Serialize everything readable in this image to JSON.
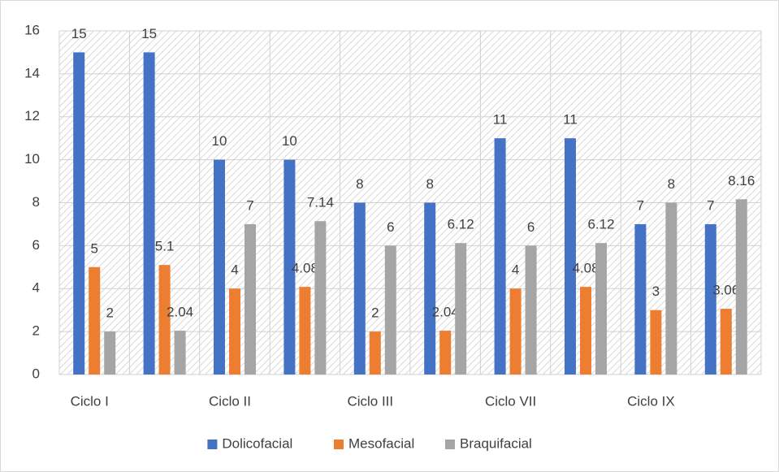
{
  "chart_data": {
    "type": "bar",
    "categories": [
      "Ciclo I",
      null,
      "Ciclo II",
      null,
      "Ciclo III",
      null,
      "Ciclo VII",
      null,
      "Ciclo IX",
      null
    ],
    "series": [
      {
        "name": "Dolicofacial",
        "color": "#4472c4",
        "values": [
          15,
          15,
          10,
          10,
          8,
          8,
          11,
          11,
          7,
          7
        ]
      },
      {
        "name": "Mesofacial",
        "color": "#ed7d31",
        "values": [
          5,
          5.1,
          4,
          4.08,
          2,
          2.04,
          4,
          4.08,
          3,
          3.06
        ]
      },
      {
        "name": "Braquifacial",
        "color": "#a5a5a5",
        "values": [
          2,
          2.04,
          7,
          7.14,
          6,
          6.12,
          6,
          6.12,
          8,
          8.16
        ]
      }
    ],
    "ylim": [
      0,
      16
    ],
    "yticks": [
      0,
      2,
      4,
      6,
      8,
      10,
      12,
      14,
      16
    ],
    "grid": true,
    "legend": "bottom"
  }
}
